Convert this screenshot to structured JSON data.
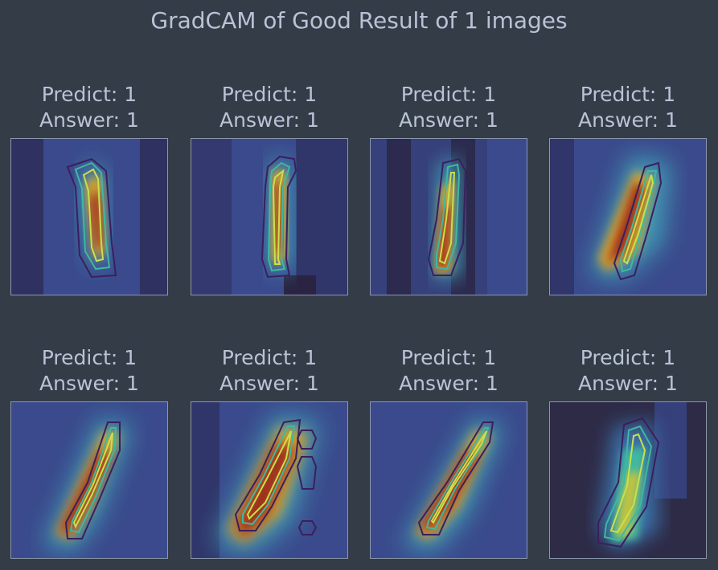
{
  "figure": {
    "title": "GradCAM of Good Result of 1 images"
  },
  "panels": [
    {
      "predict": "Predict: 1",
      "answer": "Answer: 1"
    },
    {
      "predict": "Predict: 1",
      "answer": "Answer: 1"
    },
    {
      "predict": "Predict: 1",
      "answer": "Answer: 1"
    },
    {
      "predict": "Predict: 1",
      "answer": "Answer: 1"
    },
    {
      "predict": "Predict: 1",
      "answer": "Answer: 1"
    },
    {
      "predict": "Predict: 1",
      "answer": "Answer: 1"
    },
    {
      "predict": "Predict: 1",
      "answer": "Answer: 1"
    },
    {
      "predict": "Predict: 1",
      "answer": "Answer: 1"
    }
  ],
  "colors": {
    "background": "#333c47",
    "text": "#b9c3d6",
    "panel_border": "#8c97ad"
  }
}
